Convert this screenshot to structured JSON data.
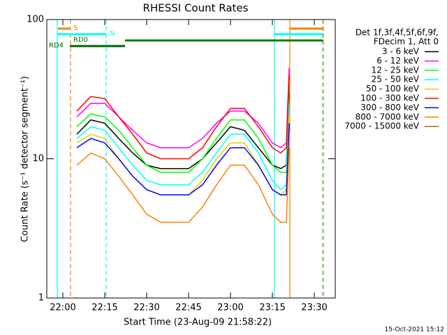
{
  "chart_data": {
    "type": "line",
    "title": "RHESSI Count Rates",
    "x_label": "Start Time (23-Aug-09 21:58:22)",
    "y_label": "Count Rate (s⁻¹ detector segment⁻¹)",
    "legend_header": [
      "Det 1f,3f,4f,5f,6f,9f,",
      "FDecim 1, Att 0"
    ],
    "footer": "15-Oct-2021 15:12",
    "log_y": true,
    "xlim": [
      1314.25,
      1417.5
    ],
    "ylim": [
      1,
      100
    ],
    "xticks": [
      {
        "value": 1320,
        "label": "22:00"
      },
      {
        "value": 1335,
        "label": "22:15"
      },
      {
        "value": 1350,
        "label": "22:30"
      },
      {
        "value": 1365,
        "label": "22:45"
      },
      {
        "value": 1380,
        "label": "23:00"
      },
      {
        "value": 1395,
        "label": "23:15"
      },
      {
        "value": 1410,
        "label": "23:30"
      }
    ],
    "yticks": [
      1,
      10,
      100
    ],
    "x": [
      1325,
      1330,
      1335,
      1340,
      1345,
      1350,
      1355,
      1360,
      1365,
      1370,
      1375,
      1380,
      1385,
      1390,
      1395,
      1398,
      1400,
      1401
    ],
    "series": [
      {
        "name": "3 - 6 keV",
        "color": "#000000",
        "values": [
          15,
          19,
          18,
          14,
          11,
          9,
          8.5,
          8.5,
          8.5,
          10,
          13,
          17,
          16,
          12,
          9,
          8.5,
          9,
          30
        ]
      },
      {
        "name": "6 - 12 keV",
        "color": "#ff00ff",
        "values": [
          20,
          25,
          25,
          20,
          16,
          13,
          12,
          12,
          12,
          14,
          18,
          22,
          22,
          18,
          13,
          12,
          13,
          45
        ]
      },
      {
        "name": "12 - 25 keV",
        "color": "#00ff00",
        "values": [
          17,
          21,
          20,
          16,
          12,
          9,
          8,
          8,
          8,
          10,
          14,
          19,
          19,
          14,
          9,
          8,
          8,
          35
        ]
      },
      {
        "name": "25 - 50 keV",
        "color": "#00ffff",
        "values": [
          14,
          17,
          16,
          12,
          9,
          7,
          6.5,
          6.5,
          6.5,
          8,
          11,
          15,
          15,
          11,
          7,
          6,
          6.5,
          25
        ]
      },
      {
        "name": "50 - 100 keV",
        "color": "#d8d800",
        "values": [
          13,
          15,
          14,
          10,
          7.5,
          6,
          5.5,
          5.5,
          5.5,
          7,
          10,
          13,
          13,
          9,
          6,
          5.5,
          6,
          20
        ]
      },
      {
        "name": "100 - 300 keV",
        "color": "#ff0000",
        "values": [
          22,
          28,
          27,
          20,
          15,
          11,
          10,
          10,
          10,
          12,
          17,
          23,
          23,
          17,
          12,
          11,
          12,
          40
        ]
      },
      {
        "name": "300 - 800 keV",
        "color": "#0000ff",
        "values": [
          12,
          14,
          13,
          10,
          7.5,
          6,
          5.5,
          5.5,
          5.5,
          6.5,
          9,
          12,
          12,
          9,
          6,
          5.5,
          5.5,
          18
        ]
      },
      {
        "name": "800 - 7000 keV",
        "color": "#ff8000",
        "values": [
          9,
          11,
          10,
          7.5,
          5.5,
          4,
          3.5,
          3.5,
          3.5,
          4.5,
          6.5,
          9,
          9,
          6.5,
          4,
          3.5,
          3.5,
          12
        ]
      },
      {
        "name": "7000 - 15000 keV",
        "color": "#a07000",
        "values": [
          null,
          null,
          null,
          null,
          null,
          null,
          null,
          null,
          null,
          null,
          null,
          null,
          null,
          null,
          null,
          null,
          null,
          null
        ]
      }
    ],
    "flags": [
      {
        "label": "S",
        "color": "#ff8000",
        "segments": [
          [
            1318.25,
            1322.5
          ],
          [
            1401.25,
            1413.25
          ]
        ]
      },
      {
        "label": "N",
        "color": "#00ffff",
        "segments": [
          [
            1318,
            1335.5
          ],
          [
            1395.75,
            1413
          ]
        ]
      },
      {
        "label": "RD0",
        "color": "#008000",
        "segments": [
          [
            1342.25,
            1413.25
          ]
        ]
      },
      {
        "label": "RD4",
        "color": "#006400",
        "segments": [
          [
            1322.5,
            1342.25
          ]
        ]
      }
    ],
    "vlines": [
      {
        "x": 1318,
        "color": "#00ffff",
        "dashed": false
      },
      {
        "x": 1322.75,
        "color": "#ff8000",
        "dashed": true
      },
      {
        "x": 1335.5,
        "color": "#00ffff",
        "dashed": true
      },
      {
        "x": 1395.75,
        "color": "#00ffff",
        "dashed": false
      },
      {
        "x": 1401.25,
        "color": "#ff8000",
        "dashed": false
      },
      {
        "x": 1413,
        "color": "#00ffff",
        "dashed": true
      },
      {
        "x": 1413.25,
        "color": "#ff8000",
        "dashed": true
      }
    ]
  }
}
